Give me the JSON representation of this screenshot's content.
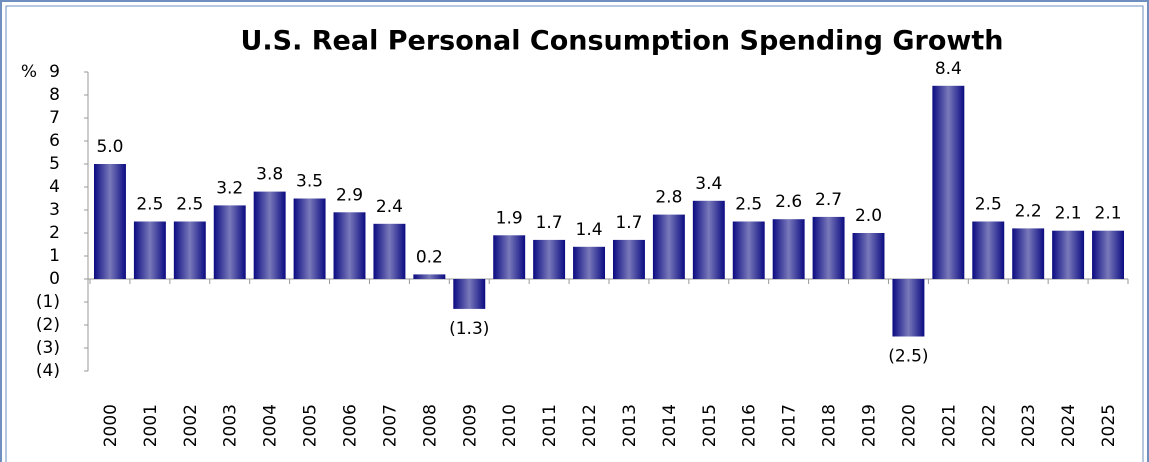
{
  "chart_data": {
    "type": "bar",
    "title": "U.S. Real Personal Consumption Spending Growth",
    "ylabel": "%",
    "categories": [
      "2000",
      "2001",
      "2002",
      "2003",
      "2004",
      "2005",
      "2006",
      "2007",
      "2008",
      "2009",
      "2010",
      "2011",
      "2012",
      "2013",
      "2014",
      "2015",
      "2016",
      "2017",
      "2018",
      "2019",
      "2020",
      "2021",
      "2022",
      "2023",
      "2024",
      "2025"
    ],
    "values": [
      5.0,
      2.5,
      2.5,
      3.2,
      3.8,
      3.5,
      2.9,
      2.4,
      0.2,
      -1.3,
      1.9,
      1.7,
      1.4,
      1.7,
      2.8,
      3.4,
      2.5,
      2.6,
      2.7,
      2.0,
      -2.5,
      8.4,
      2.5,
      2.2,
      2.1,
      2.1
    ],
    "value_labels": [
      "5.0",
      "2.5",
      "2.5",
      "3.2",
      "3.8",
      "3.5",
      "2.9",
      "2.4",
      "0.2",
      "(1.3)",
      "1.9",
      "1.7",
      "1.4",
      "1.7",
      "2.8",
      "3.4",
      "2.5",
      "2.6",
      "2.7",
      "2.0",
      "(2.5)",
      "8.4",
      "2.5",
      "2.2",
      "2.1",
      "2.1"
    ],
    "color": "#0b0b82",
    "ylim": [
      -4,
      9
    ],
    "yticks": [
      9,
      8,
      7,
      6,
      5,
      4,
      3,
      2,
      1,
      0,
      {
        "value": -1,
        "label": "(1)"
      },
      {
        "value": -2,
        "label": "(2)"
      },
      {
        "value": -3,
        "label": "(3)"
      },
      {
        "value": -4,
        "label": "(4)"
      }
    ],
    "grid": false
  }
}
